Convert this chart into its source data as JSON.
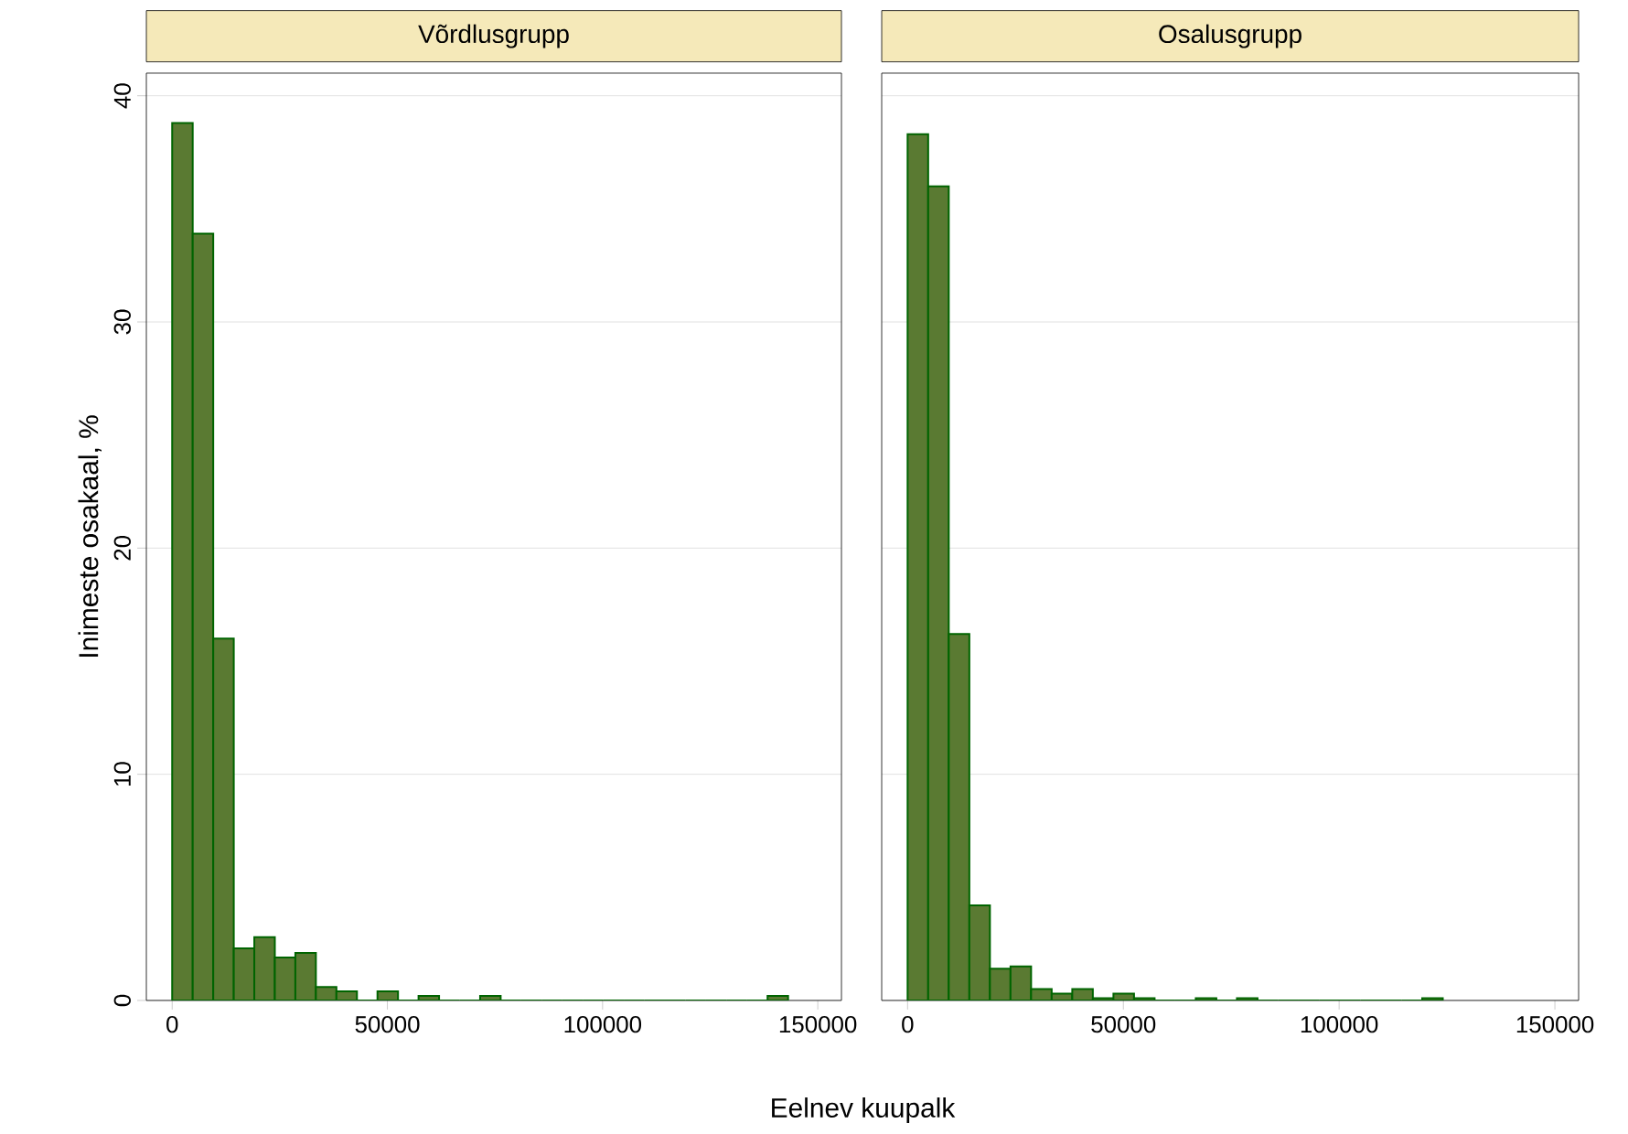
{
  "chart_data": [
    {
      "type": "histogram",
      "title": "Võrdlusgrupp",
      "xlabel": "Eelnev kuupalk",
      "ylabel": "Inimeste osakaal, %",
      "bins": [
        0,
        4770,
        9540,
        14310,
        19080,
        23850,
        28620,
        33390,
        38160,
        42930,
        47700,
        52470,
        57240,
        62010,
        66780,
        71550,
        76320,
        81090,
        85860,
        90630,
        95400,
        100170,
        104940,
        109710,
        114480,
        119250,
        124020,
        128790,
        133560,
        138330,
        143100
      ],
      "values": [
        38.8,
        33.9,
        16.0,
        2.3,
        2.8,
        1.9,
        2.1,
        0.6,
        0.4,
        0,
        0.4,
        0,
        0.2,
        0,
        0,
        0.2,
        0,
        0,
        0,
        0,
        0,
        0,
        0,
        0,
        0,
        0,
        0,
        0,
        0,
        0.2
      ],
      "color": "#5a7a32",
      "xlim": [
        -6000,
        155500
      ],
      "ylim": [
        0,
        41
      ],
      "xticks": [
        0,
        50000,
        100000,
        150000
      ],
      "yticks": [
        0,
        10,
        20,
        30,
        40
      ],
      "grid": "y"
    },
    {
      "type": "histogram",
      "title": "Osalusgrupp",
      "bins": [
        0,
        4770,
        9540,
        14310,
        19080,
        23850,
        28620,
        33390,
        38160,
        42930,
        47700,
        52470,
        57240,
        62010,
        66780,
        71550,
        76320,
        81090,
        85860,
        90630,
        95400,
        100170,
        104940,
        109710,
        114480,
        119250,
        124020
      ],
      "values": [
        38.3,
        36.0,
        16.2,
        4.2,
        1.4,
        1.5,
        0.5,
        0.3,
        0.5,
        0.1,
        0.3,
        0.1,
        0,
        0,
        0.1,
        0,
        0.1,
        0,
        0,
        0,
        0,
        0,
        0,
        0,
        0,
        0.1
      ],
      "color": "#5a7a32",
      "xlim": [
        -6000,
        155500
      ],
      "ylim": [
        0,
        41
      ],
      "xticks": [
        0,
        50000,
        100000,
        150000
      ],
      "yticks": [
        0,
        10,
        20,
        30,
        40
      ],
      "grid": "y",
      "tick_labels": "x"
    }
  ]
}
